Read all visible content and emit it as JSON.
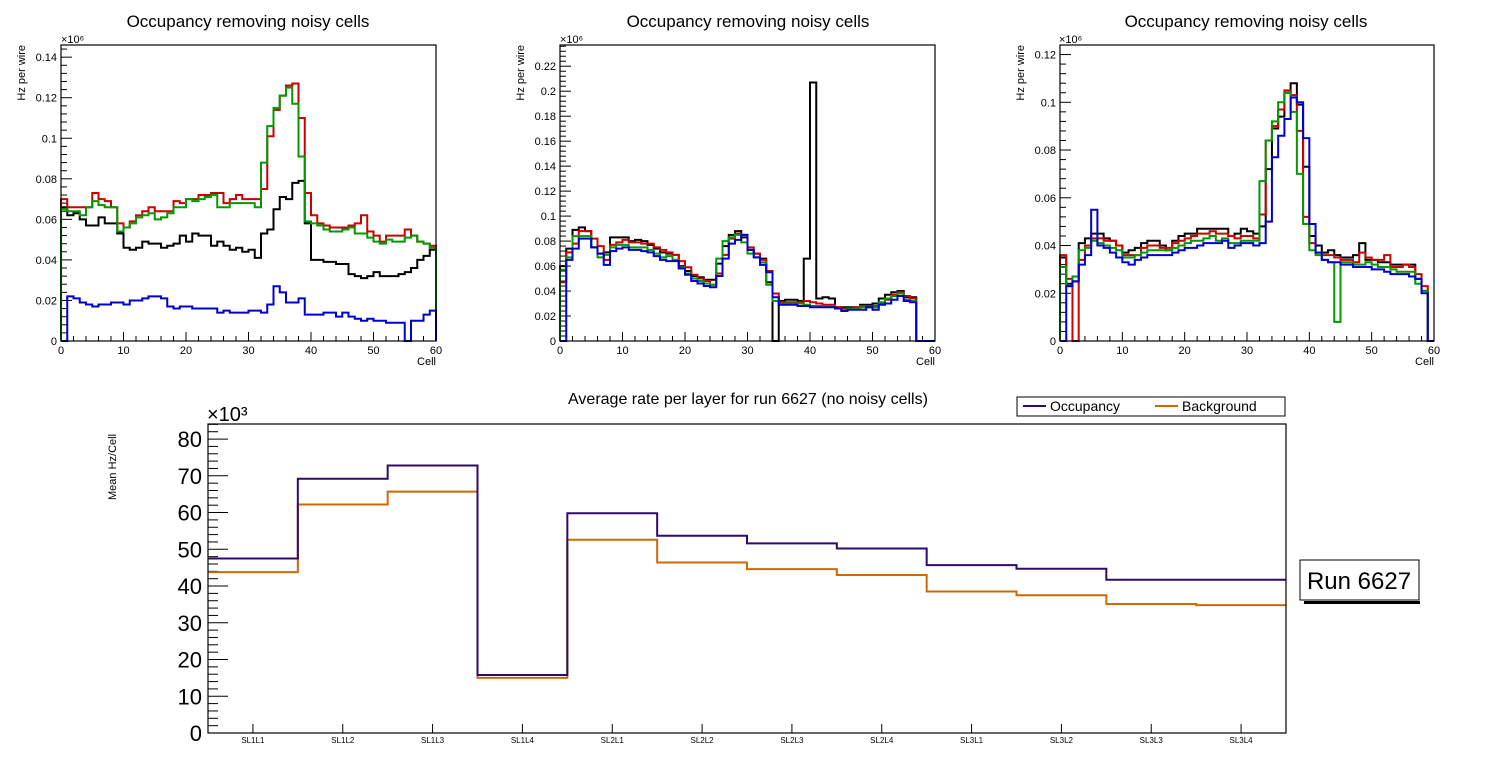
{
  "chart_data": [
    {
      "type": "histogram-step",
      "title": "Occupancy removing noisy cells",
      "xlabel": "Cell",
      "ylabel": "Hz per wire",
      "y_multiplier_label": "×10⁶",
      "xlim": [
        0,
        60
      ],
      "ylim": [
        0,
        0.146
      ],
      "xticks": [
        0,
        10,
        20,
        30,
        40,
        50,
        60
      ],
      "yticks": [
        0,
        0.02,
        0.04,
        0.06,
        0.08,
        0.1,
        0.12,
        0.14
      ],
      "ytick_labels": [
        "0",
        "0.02",
        "0.04",
        "0.06",
        "0.08",
        "0.1",
        "0.12",
        "0.14"
      ],
      "series": [
        {
          "name": "black",
          "color": "#000000",
          "values": [
            0.066,
            0.062,
            0.063,
            0.06,
            0.057,
            0.057,
            0.061,
            0.058,
            0.058,
            0.053,
            0.046,
            0.045,
            0.046,
            0.049,
            0.048,
            0.048,
            0.046,
            0.047,
            0.048,
            0.052,
            0.049,
            0.053,
            0.052,
            0.052,
            0.047,
            0.049,
            0.047,
            0.045,
            0.046,
            0.044,
            0.045,
            0.041,
            0.053,
            0.055,
            0.065,
            0.071,
            0.07,
            0.078,
            0.079,
            0.058,
            0.04,
            0.04,
            0.039,
            0.039,
            0.038,
            0.038,
            0.033,
            0.032,
            0.031,
            0.032,
            0.034,
            0.032,
            0.032,
            0.032,
            0.033,
            0.034,
            0.036,
            0.04,
            0.042,
            0.045
          ]
        },
        {
          "name": "red",
          "color": "#cc0000",
          "values": [
            0.07,
            0.066,
            0.066,
            0.066,
            0.066,
            0.073,
            0.07,
            0.069,
            0.066,
            0.058,
            0.056,
            0.059,
            0.062,
            0.064,
            0.066,
            0.064,
            0.064,
            0.064,
            0.069,
            0.068,
            0.07,
            0.07,
            0.072,
            0.072,
            0.073,
            0.073,
            0.068,
            0.07,
            0.072,
            0.07,
            0.07,
            0.07,
            0.075,
            0.101,
            0.114,
            0.121,
            0.126,
            0.127,
            0.11,
            0.073,
            0.062,
            0.058,
            0.057,
            0.056,
            0.056,
            0.056,
            0.057,
            0.058,
            0.062,
            0.054,
            0.052,
            0.049,
            0.052,
            0.052,
            0.052,
            0.055,
            0.052,
            0.049,
            0.048,
            0.047
          ]
        },
        {
          "name": "green",
          "color": "#009900",
          "values": [
            0.065,
            0.064,
            0.064,
            0.062,
            0.066,
            0.069,
            0.067,
            0.066,
            0.066,
            0.054,
            0.056,
            0.058,
            0.061,
            0.062,
            0.063,
            0.06,
            0.061,
            0.063,
            0.066,
            0.066,
            0.07,
            0.069,
            0.07,
            0.071,
            0.072,
            0.066,
            0.066,
            0.068,
            0.068,
            0.068,
            0.068,
            0.066,
            0.088,
            0.106,
            0.115,
            0.121,
            0.125,
            0.117,
            0.091,
            0.059,
            0.058,
            0.057,
            0.055,
            0.054,
            0.054,
            0.055,
            0.056,
            0.053,
            0.053,
            0.051,
            0.049,
            0.048,
            0.05,
            0.049,
            0.049,
            0.051,
            0.052,
            0.049,
            0.048,
            0.046
          ]
        },
        {
          "name": "blue",
          "color": "#0000cc",
          "values": [
            0.0,
            0.022,
            0.021,
            0.019,
            0.018,
            0.017,
            0.018,
            0.018,
            0.019,
            0.019,
            0.018,
            0.02,
            0.02,
            0.021,
            0.022,
            0.022,
            0.021,
            0.017,
            0.016,
            0.017,
            0.017,
            0.016,
            0.016,
            0.016,
            0.016,
            0.014,
            0.015,
            0.014,
            0.014,
            0.014,
            0.015,
            0.015,
            0.014,
            0.018,
            0.027,
            0.024,
            0.019,
            0.019,
            0.021,
            0.013,
            0.013,
            0.013,
            0.014,
            0.014,
            0.012,
            0.014,
            0.012,
            0.011,
            0.01,
            0.011,
            0.01,
            0.01,
            0.009,
            0.009,
            0.009,
            0.0,
            0.01,
            0.01,
            0.013,
            0.015
          ]
        }
      ]
    },
    {
      "type": "histogram-step",
      "title": "Occupancy removing noisy cells",
      "xlabel": "Cell",
      "ylabel": "Hz per wire",
      "y_multiplier_label": "×10⁶",
      "xlim": [
        0,
        60
      ],
      "ylim": [
        0,
        0.237
      ],
      "xticks": [
        0,
        10,
        20,
        30,
        40,
        50,
        60
      ],
      "yticks": [
        0,
        0.02,
        0.04,
        0.06,
        0.08,
        0.1,
        0.12,
        0.14,
        0.16,
        0.18,
        0.2,
        0.22
      ],
      "ytick_labels": [
        "0",
        "0.02",
        "0.04",
        "0.06",
        "0.08",
        "0.1",
        "0.12",
        "0.14",
        "0.16",
        "0.18",
        "0.2",
        "0.22"
      ],
      "series": [
        {
          "name": "black",
          "color": "#000000",
          "values": [
            0.06,
            0.074,
            0.089,
            0.091,
            0.088,
            0.075,
            0.07,
            0.071,
            0.083,
            0.083,
            0.083,
            0.08,
            0.081,
            0.08,
            0.077,
            0.074,
            0.071,
            0.07,
            0.069,
            0.06,
            0.056,
            0.052,
            0.051,
            0.049,
            0.049,
            0.062,
            0.076,
            0.085,
            0.088,
            0.083,
            0.073,
            0.07,
            0.066,
            0.047,
            0.0,
            0.032,
            0.033,
            0.033,
            0.032,
            0.066,
            0.207,
            0.034,
            0.035,
            0.034,
            0.027,
            0.027,
            0.027,
            0.027,
            0.029,
            0.029,
            0.03,
            0.034,
            0.037,
            0.039,
            0.04,
            0.035,
            0.035,
            0.0,
            0.0,
            0.0
          ]
        },
        {
          "name": "red",
          "color": "#cc0000",
          "values": [
            0.047,
            0.071,
            0.078,
            0.088,
            0.088,
            0.082,
            0.076,
            0.065,
            0.077,
            0.079,
            0.081,
            0.079,
            0.079,
            0.078,
            0.078,
            0.075,
            0.073,
            0.071,
            0.069,
            0.064,
            0.059,
            0.053,
            0.05,
            0.048,
            0.045,
            0.054,
            0.069,
            0.082,
            0.086,
            0.085,
            0.075,
            0.07,
            0.065,
            0.056,
            0.038,
            0.031,
            0.031,
            0.031,
            0.031,
            0.032,
            0.031,
            0.03,
            0.029,
            0.029,
            0.027,
            0.026,
            0.026,
            0.027,
            0.028,
            0.028,
            0.028,
            0.03,
            0.033,
            0.037,
            0.039,
            0.036,
            0.034,
            0.0,
            0.0,
            0.0
          ]
        },
        {
          "name": "green",
          "color": "#009900",
          "values": [
            0.057,
            0.067,
            0.084,
            0.084,
            0.084,
            0.075,
            0.067,
            0.069,
            0.075,
            0.077,
            0.077,
            0.075,
            0.075,
            0.075,
            0.073,
            0.07,
            0.067,
            0.068,
            0.065,
            0.059,
            0.054,
            0.05,
            0.048,
            0.046,
            0.045,
            0.066,
            0.08,
            0.083,
            0.085,
            0.079,
            0.07,
            0.067,
            0.063,
            0.045,
            0.032,
            0.03,
            0.03,
            0.03,
            0.03,
            0.029,
            0.028,
            0.028,
            0.028,
            0.028,
            0.026,
            0.025,
            0.026,
            0.026,
            0.027,
            0.027,
            0.027,
            0.031,
            0.034,
            0.036,
            0.038,
            0.033,
            0.032,
            0.0,
            0.0,
            0.0
          ]
        },
        {
          "name": "blue",
          "color": "#0000cc",
          "values": [
            0.0,
            0.065,
            0.074,
            0.082,
            0.082,
            0.075,
            0.07,
            0.061,
            0.072,
            0.074,
            0.075,
            0.073,
            0.073,
            0.072,
            0.071,
            0.068,
            0.065,
            0.064,
            0.064,
            0.058,
            0.053,
            0.048,
            0.046,
            0.044,
            0.043,
            0.052,
            0.066,
            0.078,
            0.081,
            0.085,
            0.073,
            0.067,
            0.061,
            0.055,
            0.035,
            0.029,
            0.029,
            0.029,
            0.028,
            0.028,
            0.027,
            0.027,
            0.027,
            0.027,
            0.026,
            0.024,
            0.025,
            0.025,
            0.025,
            0.027,
            0.025,
            0.029,
            0.03,
            0.033,
            0.036,
            0.032,
            0.031,
            0.0,
            0.0,
            0.0
          ]
        }
      ]
    },
    {
      "type": "histogram-step",
      "title": "Occupancy removing noisy cells",
      "xlabel": "Cell",
      "ylabel": "Hz per wire",
      "y_multiplier_label": "×10⁶",
      "xlim": [
        0,
        60
      ],
      "ylim": [
        0,
        0.124
      ],
      "xticks": [
        0,
        10,
        20,
        30,
        40,
        50,
        60
      ],
      "yticks": [
        0,
        0.02,
        0.04,
        0.06,
        0.08,
        0.1,
        0.12
      ],
      "ytick_labels": [
        "0",
        "0.02",
        "0.04",
        "0.06",
        "0.08",
        "0.1",
        "0.12"
      ],
      "series": [
        {
          "name": "black",
          "color": "#000000",
          "values": [
            0.035,
            0.024,
            0.025,
            0.041,
            0.043,
            0.045,
            0.045,
            0.043,
            0.042,
            0.04,
            0.037,
            0.038,
            0.039,
            0.041,
            0.042,
            0.042,
            0.04,
            0.038,
            0.042,
            0.044,
            0.045,
            0.045,
            0.047,
            0.047,
            0.047,
            0.047,
            0.047,
            0.044,
            0.045,
            0.047,
            0.046,
            0.045,
            0.048,
            0.072,
            0.089,
            0.094,
            0.104,
            0.108,
            0.099,
            0.073,
            0.044,
            0.04,
            0.037,
            0.038,
            0.036,
            0.035,
            0.035,
            0.036,
            0.041,
            0.034,
            0.034,
            0.033,
            0.033,
            0.032,
            0.032,
            0.032,
            0.032,
            0.026,
            0.021,
            0.0
          ]
        },
        {
          "name": "red",
          "color": "#cc0000",
          "values": [
            0.036,
            0.026,
            0.0,
            0.034,
            0.04,
            0.043,
            0.043,
            0.042,
            0.042,
            0.04,
            0.036,
            0.036,
            0.036,
            0.039,
            0.04,
            0.04,
            0.039,
            0.039,
            0.041,
            0.042,
            0.043,
            0.044,
            0.045,
            0.045,
            0.046,
            0.045,
            0.045,
            0.044,
            0.043,
            0.044,
            0.044,
            0.043,
            0.053,
            0.084,
            0.09,
            0.097,
            0.105,
            0.103,
            0.088,
            0.052,
            0.041,
            0.037,
            0.036,
            0.036,
            0.035,
            0.034,
            0.034,
            0.033,
            0.037,
            0.035,
            0.034,
            0.034,
            0.036,
            0.031,
            0.031,
            0.032,
            0.031,
            0.028,
            0.023,
            0.0
          ]
        },
        {
          "name": "green",
          "color": "#009900",
          "values": [
            0.031,
            0.023,
            0.027,
            0.038,
            0.039,
            0.042,
            0.041,
            0.04,
            0.039,
            0.038,
            0.035,
            0.035,
            0.036,
            0.037,
            0.038,
            0.038,
            0.038,
            0.038,
            0.039,
            0.04,
            0.041,
            0.042,
            0.042,
            0.043,
            0.044,
            0.042,
            0.043,
            0.041,
            0.041,
            0.042,
            0.042,
            0.042,
            0.067,
            0.084,
            0.092,
            0.1,
            0.104,
            0.096,
            0.07,
            0.049,
            0.038,
            0.036,
            0.034,
            0.033,
            0.008,
            0.033,
            0.033,
            0.032,
            0.032,
            0.033,
            0.032,
            0.031,
            0.031,
            0.03,
            0.029,
            0.029,
            0.029,
            0.024,
            0.021,
            0.0
          ]
        },
        {
          "name": "blue",
          "color": "#0000cc",
          "values": [
            0.0,
            0.023,
            0.025,
            0.032,
            0.036,
            0.055,
            0.04,
            0.039,
            0.037,
            0.035,
            0.033,
            0.032,
            0.034,
            0.035,
            0.036,
            0.036,
            0.036,
            0.036,
            0.037,
            0.038,
            0.039,
            0.039,
            0.04,
            0.041,
            0.041,
            0.041,
            0.042,
            0.039,
            0.04,
            0.041,
            0.041,
            0.04,
            0.041,
            0.05,
            0.077,
            0.086,
            0.093,
            0.102,
            0.1,
            0.085,
            0.049,
            0.037,
            0.034,
            0.033,
            0.033,
            0.032,
            0.032,
            0.031,
            0.031,
            0.031,
            0.03,
            0.03,
            0.029,
            0.028,
            0.028,
            0.028,
            0.027,
            0.026,
            0.02,
            0.0
          ]
        }
      ]
    },
    {
      "type": "histogram-step",
      "title": "Average rate per layer for run 6627 (no noisy cells)",
      "xlabel": "",
      "ylabel": "Mean Hz/Cell",
      "y_multiplier_label": "×10³",
      "ylim": [
        0,
        84.1
      ],
      "yticks": [
        0,
        10,
        20,
        30,
        40,
        50,
        60,
        70,
        80
      ],
      "ytick_labels": [
        "0",
        "10",
        "20",
        "30",
        "40",
        "50",
        "60",
        "70",
        "80"
      ],
      "categories": [
        "SL1L1",
        "SL1L2",
        "SL1L3",
        "SL1L4",
        "SL2L1",
        "SL2L2",
        "SL2L3",
        "SL2L4",
        "SL3L1",
        "SL3L2",
        "SL3L3",
        "SL3L4"
      ],
      "legend": {
        "position": "top-right",
        "entries": [
          "Occupancy",
          "Background"
        ]
      },
      "annotation": "Run 6627",
      "series": [
        {
          "name": "Occupancy",
          "color": "#2e0a6a",
          "values": [
            47.5,
            69.2,
            72.8,
            15.8,
            59.8,
            53.7,
            51.6,
            50.2,
            45.7,
            44.7,
            41.7,
            41.7
          ]
        },
        {
          "name": "Background",
          "color": "#cc6a0a",
          "values": [
            43.8,
            62.2,
            65.7,
            15.0,
            52.6,
            46.4,
            44.6,
            43.0,
            38.5,
            37.5,
            35.1,
            34.8
          ]
        }
      ]
    }
  ]
}
